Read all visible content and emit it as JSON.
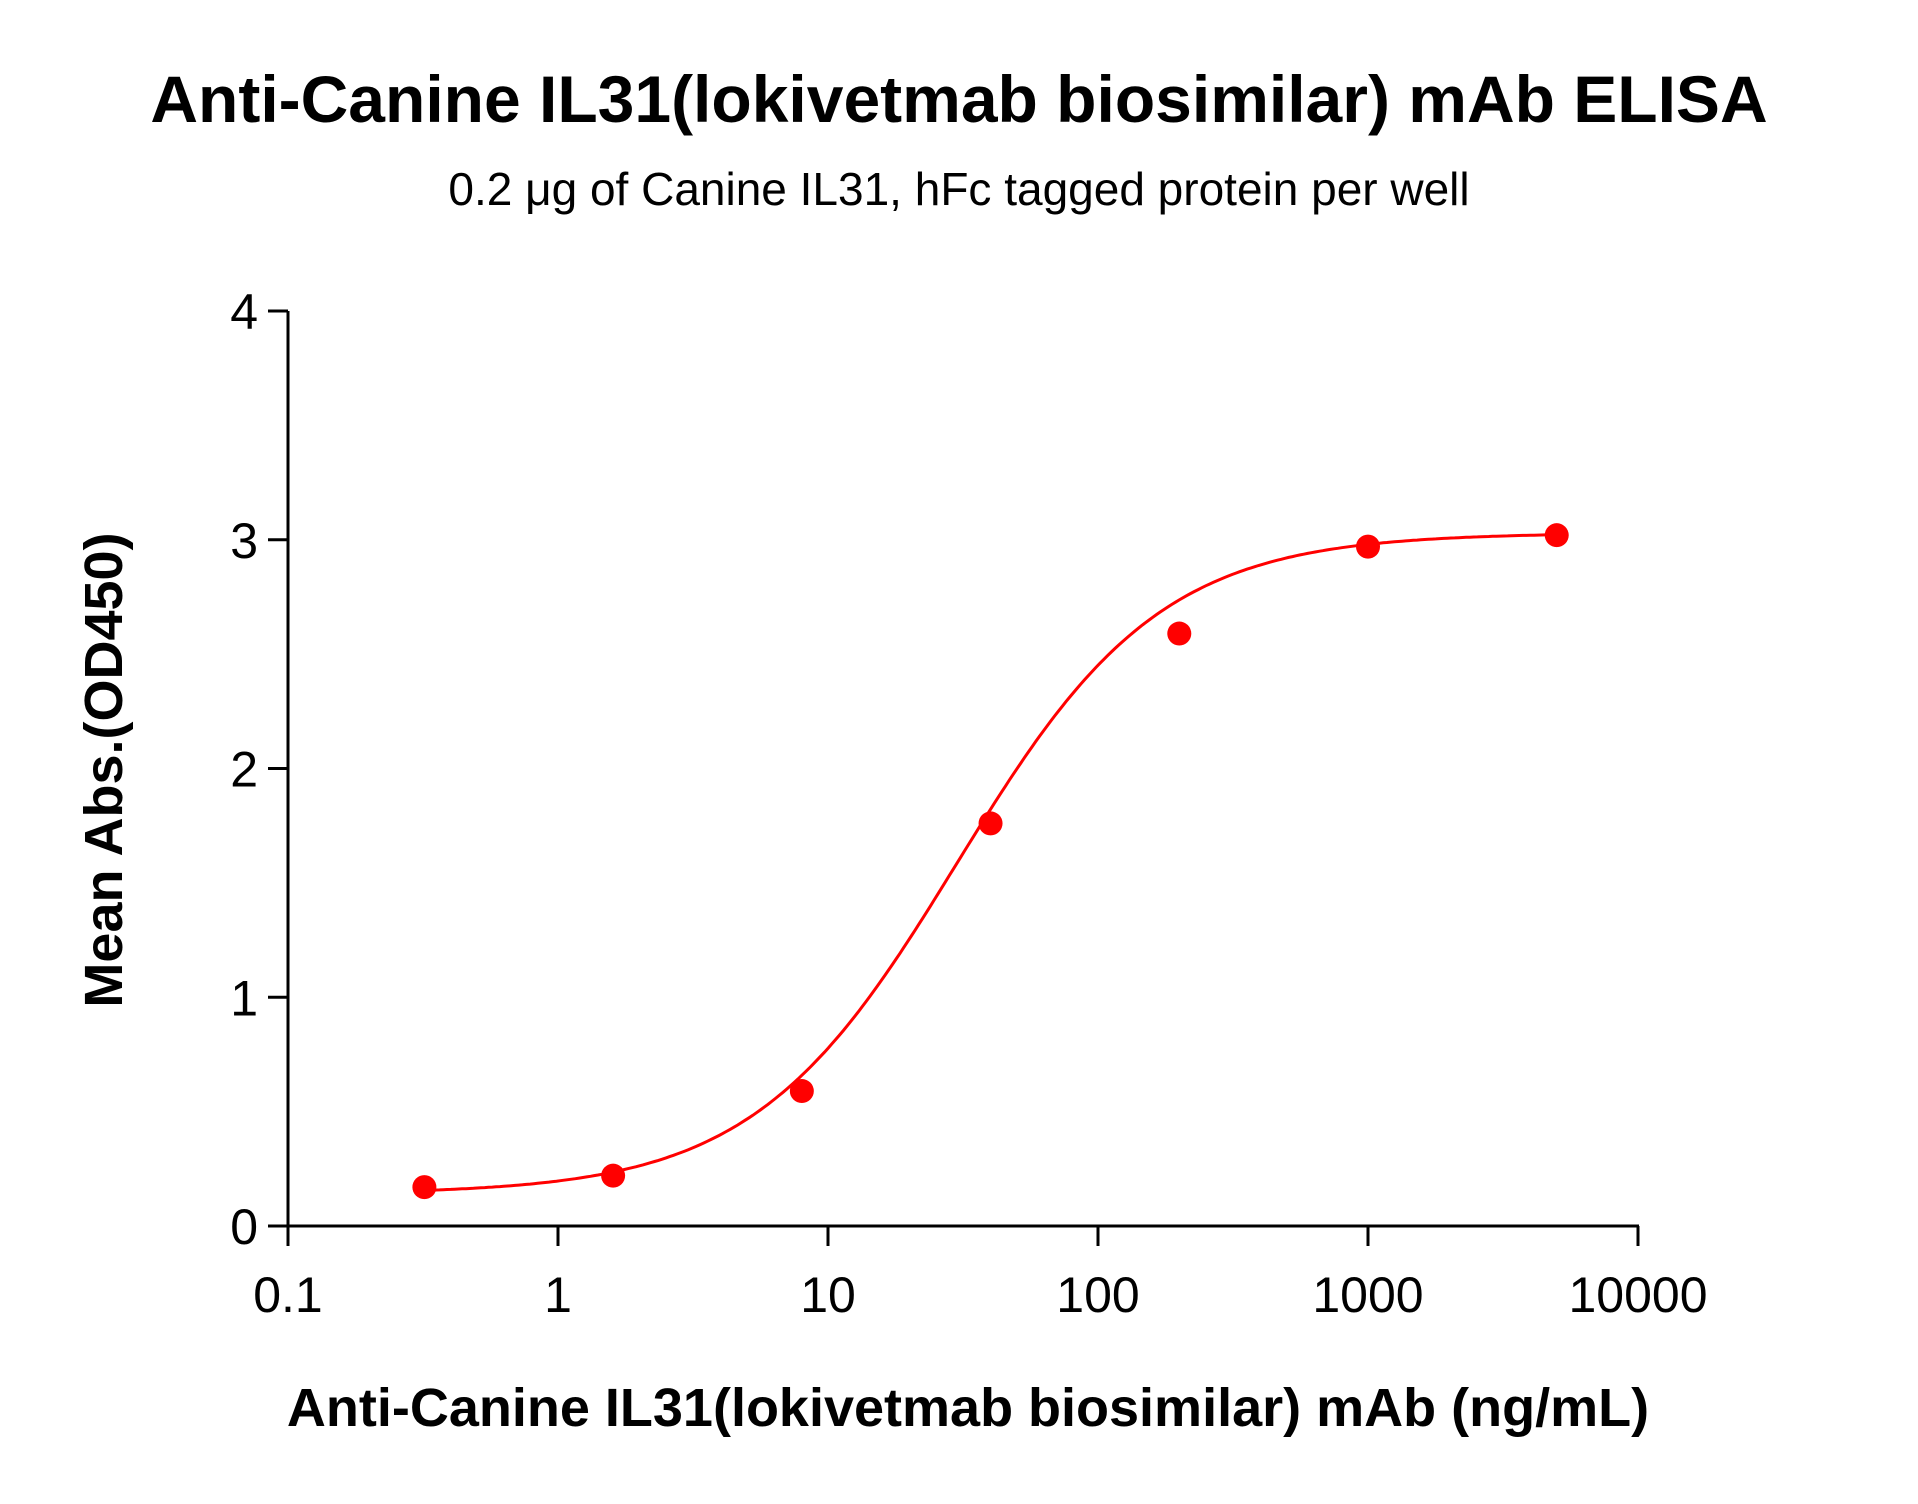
{
  "chart_data": {
    "type": "scatter",
    "title": "Anti-Canine IL31(lokivetmab biosimilar) mAb ELISA",
    "subtitle": "0.2 μg of Canine IL31, hFc tagged protein per well",
    "xlabel": "Anti-Canine IL31(lokivetmab biosimilar) mAb (ng/mL)",
    "ylabel": "Mean Abs.(OD450)",
    "xscale": "log",
    "xlim": [
      0.1,
      10000
    ],
    "ylim": [
      0,
      4
    ],
    "xticks": [
      "0.1",
      "1",
      "10",
      "100",
      "1000",
      "10000"
    ],
    "yticks": [
      "0",
      "1",
      "2",
      "3",
      "4"
    ],
    "grid": false,
    "color": "#ff0000",
    "series": [
      {
        "x": [
          0.32,
          1.6,
          8,
          40,
          200,
          1000,
          5000
        ],
        "y": [
          0.17,
          0.22,
          0.59,
          1.76,
          2.59,
          2.97,
          3.02
        ],
        "fit": {
          "model": "4PL",
          "bottom": 0.14,
          "top": 3.03,
          "ec50": 30,
          "hill": 1.15
        }
      }
    ]
  }
}
